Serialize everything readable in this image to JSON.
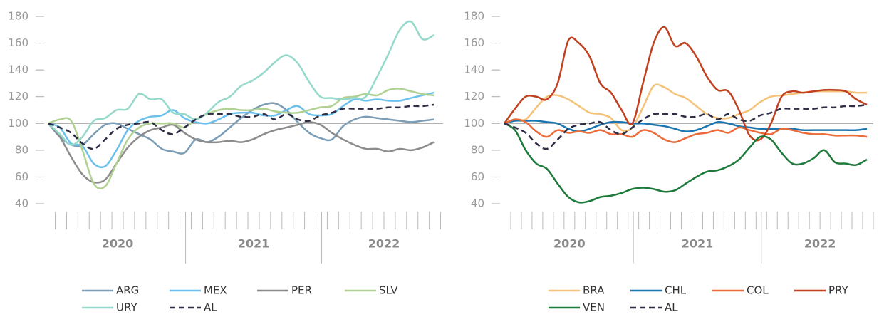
{
  "chart_data": [
    {
      "type": "line",
      "ylim": [
        40,
        180
      ],
      "yticks": [
        40,
        60,
        80,
        100,
        120,
        140,
        160,
        180
      ],
      "baseline": 100,
      "categories": [
        null,
        null,
        null,
        null,
        null,
        null,
        null,
        null,
        null,
        null,
        null,
        null,
        null,
        null,
        null,
        null,
        null,
        null,
        null,
        null,
        null,
        null,
        null,
        null,
        null,
        null,
        null,
        null,
        null,
        null,
        null,
        null,
        null,
        null,
        null
      ],
      "x_groups": [
        {
          "label": "2020",
          "count": 12
        },
        {
          "label": "2021",
          "count": 12
        },
        {
          "label": "2022",
          "count": 11
        }
      ],
      "series": [
        {
          "name": "ARG",
          "color": "#7b9db6",
          "values": [
            100,
            90,
            84,
            84,
            92,
            99,
            100,
            96,
            92,
            88,
            81,
            79,
            78,
            88,
            86,
            90,
            97,
            104,
            110,
            114,
            115,
            110,
            101,
            93,
            89,
            88,
            98,
            103,
            105,
            104,
            103,
            102,
            101,
            102,
            103
          ]
        },
        {
          "name": "MEX",
          "color": "#6cc0ec",
          "values": [
            100,
            97,
            85,
            83,
            70,
            68,
            80,
            95,
            102,
            105,
            106,
            110,
            104,
            101,
            100,
            103,
            107,
            108,
            108,
            106,
            106,
            110,
            113,
            107,
            106,
            107,
            113,
            118,
            117,
            118,
            117,
            117,
            119,
            121,
            123
          ]
        },
        {
          "name": "PER",
          "color": "#8c8c8c",
          "values": [
            100,
            90,
            75,
            62,
            56,
            58,
            70,
            82,
            90,
            95,
            97,
            99,
            93,
            88,
            86,
            86,
            87,
            86,
            88,
            92,
            95,
            97,
            99,
            101,
            99,
            93,
            88,
            84,
            81,
            81,
            79,
            81,
            80,
            82,
            86
          ]
        },
        {
          "name": "SLV",
          "color": "#b0d192",
          "values": [
            100,
            103,
            102,
            80,
            55,
            53,
            70,
            88,
            97,
            100,
            100,
            100,
            97,
            103,
            107,
            110,
            111,
            110,
            110,
            111,
            109,
            108,
            108,
            110,
            112,
            113,
            119,
            120,
            122,
            121,
            125,
            126,
            124,
            122,
            121
          ]
        },
        {
          "name": "URY",
          "color": "#95d9cb",
          "values": [
            100,
            92,
            84,
            90,
            102,
            104,
            110,
            111,
            122,
            118,
            118,
            108,
            107,
            103,
            108,
            116,
            120,
            128,
            132,
            138,
            146,
            151,
            145,
            131,
            120,
            119,
            118,
            119,
            120,
            135,
            152,
            170,
            176,
            163,
            166
          ]
        },
        {
          "name": "AL",
          "color": "#2d2d45",
          "dash": true,
          "values": [
            100,
            97,
            93,
            85,
            81,
            88,
            96,
            99,
            100,
            101,
            95,
            92,
            97,
            103,
            107,
            107,
            107,
            105,
            105,
            107,
            103,
            107,
            103,
            102,
            106,
            108,
            111,
            111,
            111,
            111,
            112,
            112,
            113,
            113,
            114
          ]
        }
      ]
    },
    {
      "type": "line",
      "ylim": [
        40,
        180
      ],
      "yticks": [
        40,
        60,
        80,
        100,
        120,
        140,
        160,
        180
      ],
      "baseline": 100,
      "categories": [
        null,
        null,
        null,
        null,
        null,
        null,
        null,
        null,
        null,
        null,
        null,
        null,
        null,
        null,
        null,
        null,
        null,
        null,
        null,
        null,
        null,
        null,
        null,
        null,
        null,
        null,
        null,
        null,
        null,
        null,
        null,
        null,
        null,
        null,
        null
      ],
      "x_groups": [
        {
          "label": "2020",
          "count": 12
        },
        {
          "label": "2021",
          "count": 12
        },
        {
          "label": "2022",
          "count": 11
        }
      ],
      "series": [
        {
          "name": "BRA",
          "color": "#f5c27a",
          "values": [
            100,
            103,
            103,
            112,
            120,
            121,
            118,
            113,
            108,
            107,
            104,
            95,
            97,
            112,
            128,
            127,
            122,
            119,
            113,
            107,
            104,
            104,
            107,
            110,
            116,
            120,
            121,
            122,
            123,
            124,
            124,
            124,
            124,
            123,
            123
          ]
        },
        {
          "name": "CHL",
          "color": "#1a75b0",
          "values": [
            100,
            102,
            102,
            102,
            101,
            100,
            96,
            94,
            96,
            99,
            101,
            101,
            100,
            100,
            99,
            98,
            96,
            94,
            95,
            98,
            101,
            100,
            98,
            97,
            96,
            96,
            96,
            96,
            95,
            95,
            95,
            95,
            95,
            95,
            96
          ]
        },
        {
          "name": "COL",
          "color": "#ec6b3a",
          "values": [
            100,
            103,
            101,
            94,
            90,
            95,
            93,
            94,
            93,
            95,
            92,
            92,
            90,
            95,
            93,
            88,
            86,
            89,
            92,
            93,
            95,
            93,
            97,
            95,
            93,
            92,
            96,
            95,
            93,
            92,
            92,
            91,
            91,
            91,
            90
          ]
        },
        {
          "name": "PRY",
          "color": "#c1401f",
          "values": [
            100,
            111,
            120,
            120,
            118,
            130,
            162,
            160,
            150,
            130,
            123,
            110,
            100,
            130,
            160,
            172,
            158,
            160,
            150,
            135,
            125,
            124,
            110,
            91,
            88,
            100,
            120,
            124,
            123,
            124,
            125,
            125,
            124,
            118,
            114
          ]
        },
        {
          "name": "VEN",
          "color": "#1e7a3a",
          "values": [
            100,
            95,
            80,
            70,
            66,
            55,
            45,
            41,
            42,
            45,
            46,
            48,
            51,
            52,
            51,
            49,
            50,
            55,
            60,
            64,
            65,
            68,
            73,
            82,
            90,
            88,
            78,
            70,
            70,
            74,
            80,
            71,
            70,
            69,
            73
          ]
        },
        {
          "name": "AL",
          "color": "#2d2d45",
          "dash": true,
          "values": [
            100,
            97,
            93,
            85,
            81,
            88,
            96,
            99,
            100,
            101,
            95,
            92,
            97,
            103,
            107,
            107,
            107,
            105,
            105,
            107,
            103,
            107,
            103,
            102,
            106,
            108,
            111,
            111,
            111,
            111,
            112,
            112,
            113,
            113,
            114
          ]
        }
      ]
    }
  ]
}
